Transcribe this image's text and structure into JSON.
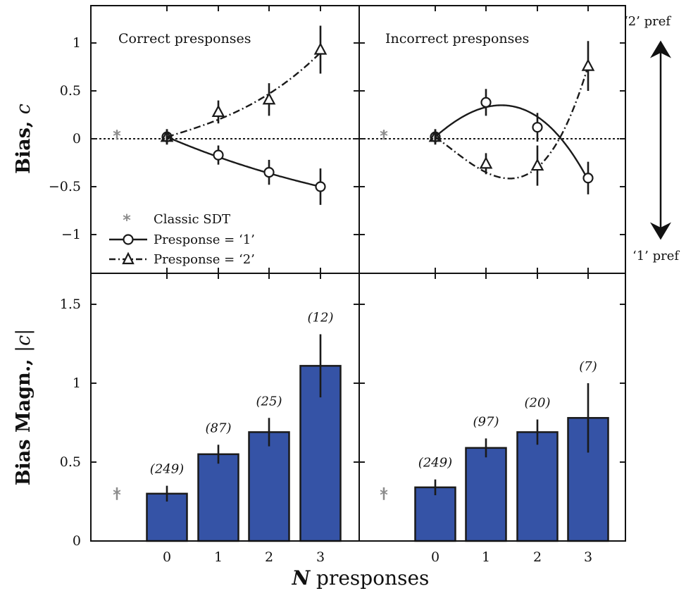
{
  "figure": {
    "ylabel_top_prefix": "Bias, ",
    "ylabel_top_var": "c",
    "ylabel_bottom_prefix": "Bias Magn., ",
    "ylabel_bottom_var": "|c|",
    "xlabel_var": "N",
    "xlabel_text": " presponses",
    "side_top": "‘2’ pref",
    "side_bottom": "‘1’ pref",
    "legend": {
      "classic": "Classic SDT",
      "p1": "Presponse = ‘1’",
      "p2": "Presponse = ‘2’"
    },
    "panel_titles": [
      "Correct presponses",
      "Incorrect presponses"
    ],
    "colors": {
      "bar": "#3553a6",
      "classic": "#8c8c8c",
      "ink": "#1a1a1a"
    }
  },
  "chart_data": [
    {
      "type": "line",
      "panel": "top-left",
      "title": "Correct presponses",
      "ylabel": "Bias, c",
      "x": [
        0,
        1,
        2,
        3
      ],
      "ylim": [
        -1.4,
        1.4
      ],
      "yticks": [
        -1,
        -0.5,
        0,
        0.5,
        1
      ],
      "ytick_labels": [
        "−1",
        "−0.5",
        "0",
        "0.5",
        "1"
      ],
      "classic_sdt": {
        "value": 0.04,
        "err": 0.05
      },
      "series": [
        {
          "name": "Presponse = ‘1’",
          "marker": "circle",
          "style": "solid",
          "values": [
            0.02,
            -0.17,
            -0.35,
            -0.5
          ],
          "errors": [
            0.08,
            0.1,
            0.13,
            0.19
          ],
          "fit": [
            0.02,
            -0.19,
            -0.36,
            -0.5
          ]
        },
        {
          "name": "Presponse = ‘2’",
          "marker": "triangle",
          "style": "dashdot",
          "values": [
            0.02,
            0.28,
            0.41,
            0.93
          ],
          "errors": [
            0.08,
            0.12,
            0.17,
            0.25
          ],
          "fit": [
            0.02,
            0.2,
            0.47,
            0.9
          ]
        }
      ]
    },
    {
      "type": "line",
      "panel": "top-right",
      "title": "Incorrect presponses",
      "x": [
        0,
        1,
        2,
        3
      ],
      "ylim": [
        -1.4,
        1.4
      ],
      "classic_sdt": {
        "value": 0.04,
        "err": 0.05
      },
      "series": [
        {
          "name": "Presponse = ‘1’",
          "marker": "circle",
          "style": "solid",
          "values": [
            0.02,
            0.38,
            0.12,
            -0.41
          ],
          "errors": [
            0.08,
            0.14,
            0.15,
            0.17
          ],
          "fit": [
            0.02,
            0.33,
            0.23,
            -0.43
          ]
        },
        {
          "name": "Presponse = ‘2’",
          "marker": "triangle",
          "style": "dashdot",
          "values": [
            0.02,
            -0.26,
            -0.28,
            0.76
          ],
          "errors": [
            0.08,
            0.11,
            0.21,
            0.26
          ],
          "fit": [
            0.02,
            -0.35,
            -0.3,
            0.76
          ]
        }
      ]
    },
    {
      "type": "bar",
      "panel": "bottom-left",
      "ylabel": "Bias Magn., |c|",
      "xlabel": "N presponses",
      "categories": [
        "0",
        "1",
        "2",
        "3"
      ],
      "values": [
        0.3,
        0.55,
        0.69,
        1.11
      ],
      "errors": [
        0.05,
        0.06,
        0.09,
        0.2
      ],
      "counts": [
        "(249)",
        "(87)",
        "(25)",
        "(12)"
      ],
      "ylim": [
        0,
        1.7
      ],
      "yticks": [
        0,
        0.5,
        1,
        1.5
      ],
      "ytick_labels": [
        "0",
        "0.5",
        "1",
        "1.5"
      ],
      "classic_sdt": {
        "value": 0.3,
        "err": 0.04
      }
    },
    {
      "type": "bar",
      "panel": "bottom-right",
      "xlabel": "N presponses",
      "categories": [
        "0",
        "1",
        "2",
        "3"
      ],
      "values": [
        0.34,
        0.59,
        0.69,
        0.78
      ],
      "errors": [
        0.05,
        0.06,
        0.08,
        0.22
      ],
      "counts": [
        "(249)",
        "(97)",
        "(20)",
        "(7)"
      ],
      "ylim": [
        0,
        1.7
      ],
      "classic_sdt": {
        "value": 0.3,
        "err": 0.04
      }
    }
  ]
}
